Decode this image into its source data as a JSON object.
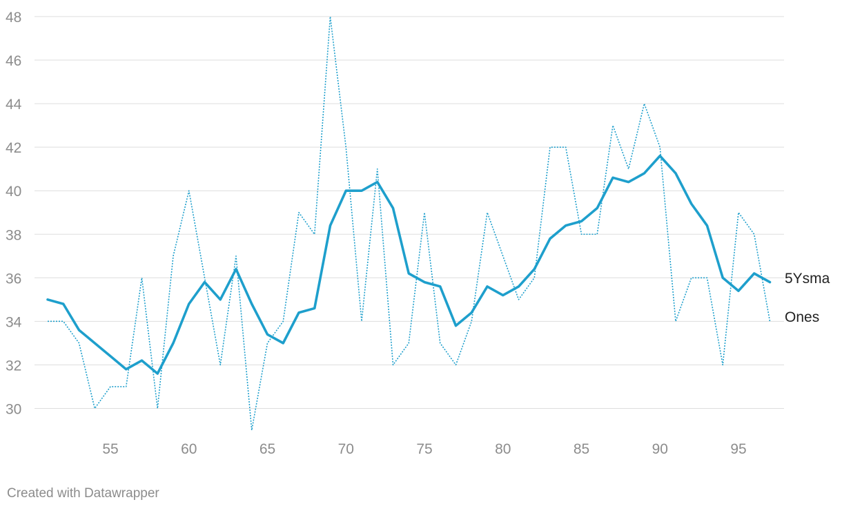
{
  "chart_data": {
    "type": "line",
    "x": [
      51,
      52,
      53,
      54,
      55,
      56,
      57,
      58,
      59,
      60,
      61,
      62,
      63,
      64,
      65,
      66,
      67,
      68,
      69,
      70,
      71,
      72,
      73,
      74,
      75,
      76,
      77,
      78,
      79,
      80,
      81,
      82,
      83,
      84,
      85,
      86,
      87,
      88,
      89,
      90,
      91,
      92,
      93,
      94,
      95,
      96,
      97
    ],
    "series": [
      {
        "name": "5Ysma",
        "style": "solid",
        "color": "#1e9fcc",
        "values": [
          35,
          34.8,
          33.6,
          33,
          32.4,
          31.8,
          32.2,
          31.6,
          33,
          34.8,
          35.8,
          35,
          36.4,
          34.8,
          33.4,
          33,
          34.4,
          34.6,
          38.4,
          40,
          40,
          40.4,
          39.2,
          36.2,
          35.8,
          35.6,
          33.8,
          34.4,
          35.6,
          35.2,
          35.6,
          36.4,
          37.8,
          38.4,
          38.6,
          39.2,
          40.6,
          40.4,
          40.8,
          41.6,
          40.8,
          39.4,
          38.4,
          36,
          35.4,
          36.2,
          35.8
        ]
      },
      {
        "name": "Ones",
        "style": "dotted",
        "color": "#1e9fcc",
        "values": [
          34,
          34,
          33,
          30,
          31,
          31,
          36,
          30,
          37,
          40,
          36,
          32,
          37,
          29,
          33,
          34,
          39,
          38,
          48,
          42,
          34,
          41,
          32,
          33,
          39,
          33,
          32,
          34,
          39,
          37,
          35,
          36,
          42,
          42,
          38,
          38,
          43,
          41,
          44,
          42,
          34,
          36,
          36,
          32,
          39,
          38,
          34
        ]
      }
    ],
    "ylim": [
      29,
      48
    ],
    "y_ticks": [
      "30",
      "32",
      "34",
      "36",
      "38",
      "40",
      "42",
      "44",
      "46",
      "48"
    ],
    "x_ticks": [
      "55",
      "60",
      "65",
      "70",
      "75",
      "80",
      "85",
      "90",
      "95"
    ],
    "grid": "horizontal",
    "legend": "inline-right"
  },
  "footer": {
    "credit": "Created with Datawrapper"
  }
}
